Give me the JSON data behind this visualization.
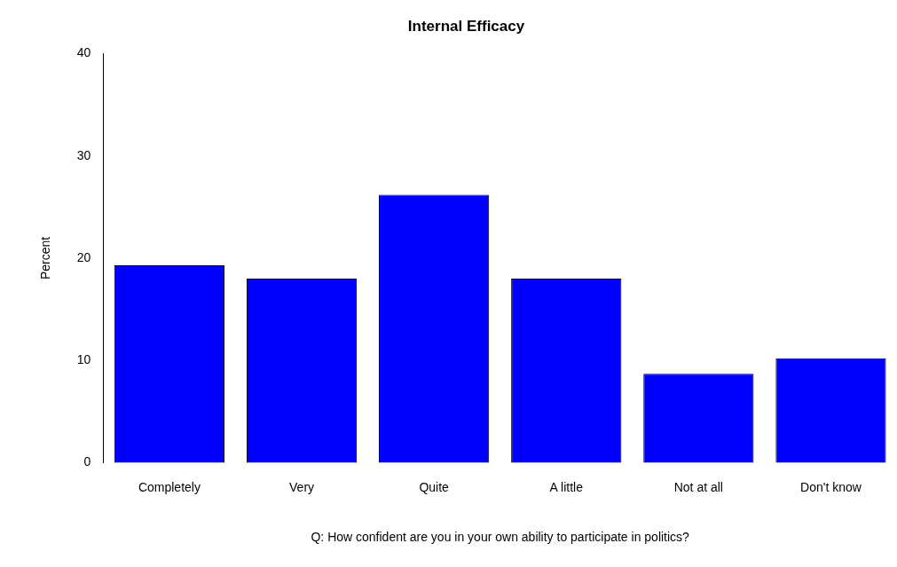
{
  "chart_data": {
    "type": "bar",
    "title": "Internal Efficacy",
    "xlabel": "Q: How confident are you in your own ability to participate in politics?",
    "ylabel": "Percent",
    "categories": [
      "Completely",
      "Very",
      "Quite",
      "A little",
      "Not at all",
      "Don't know"
    ],
    "values": [
      19.3,
      18.0,
      26.2,
      18.0,
      8.7,
      10.2
    ],
    "color": "#0000ff",
    "ylim": [
      0,
      40
    ],
    "yticks": [
      0,
      10,
      20,
      30,
      40
    ],
    "grid": false,
    "legend": false
  }
}
